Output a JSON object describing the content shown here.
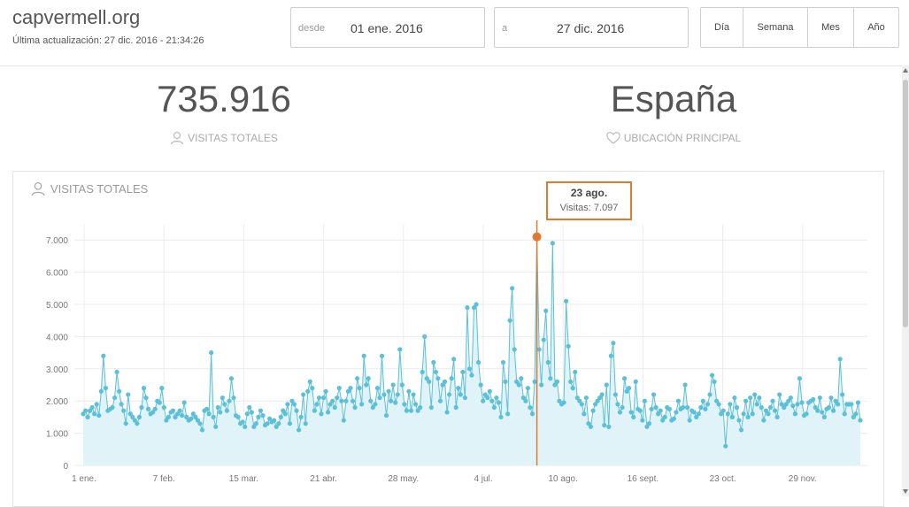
{
  "header": {
    "site_title": "capvermell.org",
    "last_update": "Última actualización: 27 dic. 2016 - 21:34:26",
    "from": {
      "label": "desde",
      "value": "01 ene. 2016"
    },
    "to": {
      "label": "a",
      "value": "27 dic. 2016"
    },
    "periods": [
      {
        "label": "Día"
      },
      {
        "label": "Semana"
      },
      {
        "label": "Mes"
      },
      {
        "label": "Año"
      }
    ]
  },
  "kpis": {
    "total_visits": {
      "value": "735.916",
      "label": "VISITAS TOTALES",
      "icon": "user-icon"
    },
    "main_location": {
      "value": "España",
      "label": "UBICACIÓN PRINCIPAL",
      "icon": "heart-icon"
    }
  },
  "chart_panel": {
    "title": "VISITAS TOTALES",
    "icon": "user-icon"
  },
  "tooltip": {
    "date": "23 ago.",
    "value_text": "Visitas: 7.097"
  },
  "colors": {
    "series": "#5bc0d8",
    "area": "#dff3f8",
    "highlight": "#e07a2e",
    "grid": "#ececec"
  },
  "chart_data": {
    "type": "area",
    "x_tick_labels": [
      "1 ene.",
      "7 feb.",
      "15 mar.",
      "21 abr.",
      "28 may.",
      "4 jul.",
      "10 ago.",
      "16 sept.",
      "23 oct.",
      "29 nov."
    ],
    "y_tick_labels": [
      "0",
      "1.000",
      "2.000",
      "3.000",
      "4.000",
      "5.000",
      "6.000",
      "7.000"
    ],
    "ylim": [
      0,
      7500
    ],
    "series": [
      {
        "values": [
          1600,
          1700,
          1500,
          1700,
          1800,
          1600,
          1900,
          1550,
          2300,
          3400,
          2400,
          1700,
          1750,
          1800,
          2100,
          2900,
          2300,
          1900,
          1700,
          1300,
          2200,
          1600,
          1500,
          1400,
          1300,
          1500,
          1800,
          2400,
          2100,
          1750,
          1600,
          1650,
          1750,
          2000,
          1950,
          2400,
          1800,
          1400,
          1500,
          1650,
          1700,
          1500,
          1600,
          1700,
          1550,
          1950,
          1500,
          1400,
          1450,
          1600,
          1500,
          1400,
          1300,
          1100,
          1700,
          1750,
          1600,
          3500,
          1500,
          1200,
          1800,
          1650,
          2100,
          1900,
          1700,
          2000,
          2700,
          2100,
          1550,
          1500,
          1300,
          1350,
          1200,
          1600,
          1800,
          1650,
          1200,
          1300,
          1500,
          1700,
          1550,
          1250,
          1300,
          1450,
          1350,
          1400,
          1200,
          1300,
          1500,
          1700,
          1600,
          1900,
          1300,
          2000,
          1900,
          1700,
          1100,
          1500,
          2200,
          1300,
          2300,
          2600,
          2400,
          1700,
          1900,
          2100,
          1600,
          2100,
          2300,
          1650,
          1900,
          2000,
          1800,
          2100,
          2400,
          2000,
          1400,
          2000,
          2300,
          2400,
          2000,
          1800,
          2700,
          2400,
          1900,
          3400,
          2500,
          2700,
          2000,
          1800,
          1900,
          2400,
          2100,
          3400,
          2200,
          1550,
          2300,
          2000,
          2500,
          1950,
          2200,
          3600,
          2500,
          1900,
          1700,
          2300,
          1700,
          2200,
          1900,
          1700,
          1800,
          2900,
          4000,
          2700,
          2600,
          1800,
          3200,
          2900,
          2700,
          2000,
          2500,
          2600,
          1650,
          2200,
          2700,
          3300,
          1800,
          2400,
          2200,
          2900,
          2100,
          4900,
          3000,
          2800,
          4900,
          5000,
          3200,
          2500,
          2000,
          2200,
          2100,
          2300,
          2000,
          1800,
          2100,
          1950,
          1500,
          3200,
          2600,
          1600,
          4500,
          5500,
          3600,
          2600,
          2500,
          2700,
          2100,
          2000,
          2400,
          1800,
          1600,
          2600,
          7097,
          3600,
          2500,
          3900,
          4800,
          3200,
          2700,
          6900,
          2500,
          2600,
          2000,
          1900,
          1950,
          5100,
          3700,
          2600,
          2400,
          2900,
          2100,
          2000,
          1900,
          1600,
          2100,
          1300,
          1200,
          1700,
          1900,
          2000,
          2100,
          2200,
          1250,
          2500,
          1200,
          3400,
          3800,
          2200,
          1900,
          1650,
          1800,
          2700,
          2300,
          2400,
          1650,
          1500,
          2600,
          1750,
          1700,
          1400,
          2000,
          1200,
          1300,
          1750,
          2200,
          1800,
          1600,
          1700,
          1400,
          1500,
          1800,
          1750,
          1400,
          1450,
          1650,
          2000,
          1750,
          1800,
          2500,
          1800,
          1400,
          1700,
          1650,
          1500,
          1600,
          1800,
          2000,
          1750,
          1900,
          2200,
          2800,
          2600,
          2000,
          1900,
          1600,
          1700,
          600,
          1600,
          1900,
          1500,
          2100,
          1800,
          1400,
          1100,
          1600,
          2000,
          1500,
          2100,
          1600,
          2200,
          1900,
          2100,
          1800,
          1400,
          1700,
          1600,
          1800,
          2000,
          1700,
          1500,
          2200,
          1900,
          1800,
          1900,
          2000,
          2100,
          1850,
          1600,
          1900,
          2700,
          1950,
          1550,
          1600,
          1950,
          2000,
          2050,
          1800,
          1700,
          2100,
          1650,
          1500,
          1750,
          1800,
          2100,
          1700,
          2000,
          1900,
          3300,
          2200,
          1600,
          1900,
          1900,
          1900,
          1500,
          1600,
          1950,
          1400
        ]
      }
    ],
    "highlight": {
      "date": "23 ago.",
      "value": 7097
    }
  }
}
